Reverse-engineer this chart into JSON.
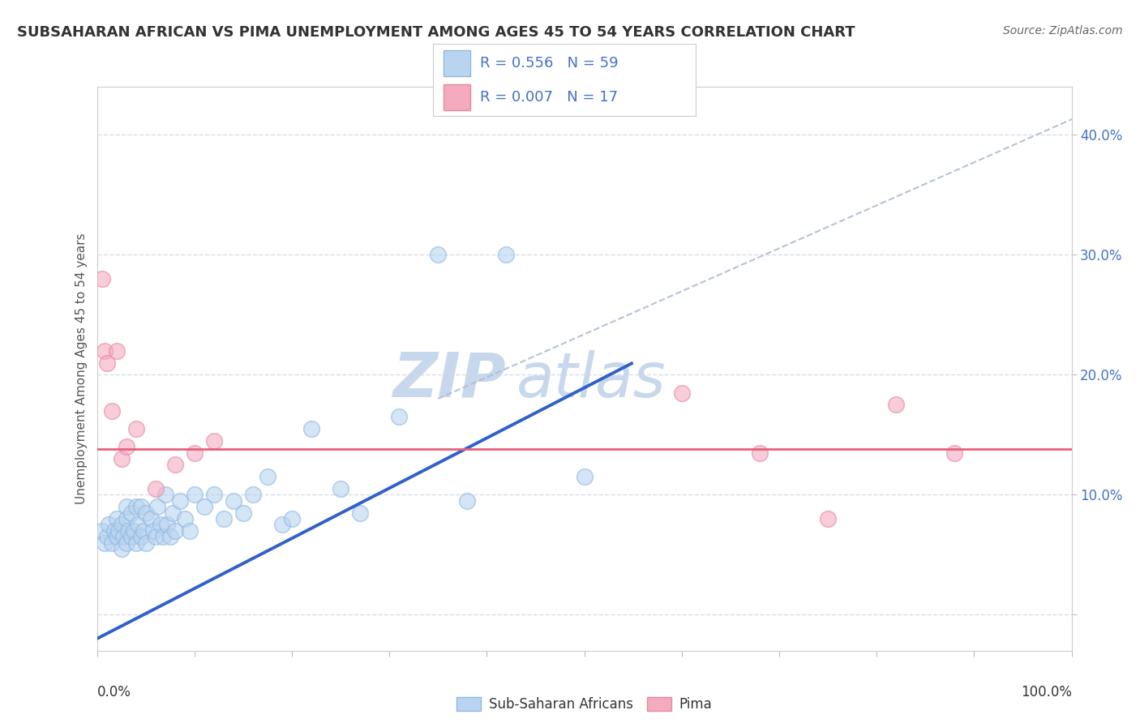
{
  "title": "SUBSAHARAN AFRICAN VS PIMA UNEMPLOYMENT AMONG AGES 45 TO 54 YEARS CORRELATION CHART",
  "source": "Source: ZipAtlas.com",
  "ylabel": "Unemployment Among Ages 45 to 54 years",
  "legend_blue_label": "Sub-Saharan Africans",
  "legend_pink_label": "Pima",
  "R_blue": 0.556,
  "N_blue": 59,
  "R_pink": 0.007,
  "N_pink": 17,
  "blue_fill": "#b8d4f0",
  "blue_edge": "#90b8e0",
  "blue_line_color": "#3060c8",
  "pink_fill": "#f4aabf",
  "pink_edge": "#e888a0",
  "pink_line_color": "#e8607a",
  "ref_line_color": "#b0bcd0",
  "watermark_color": "#c8d8ec",
  "grid_color": "#d8dde8",
  "tick_label_color": "#4472c4",
  "ylabel_color": "#555555",
  "title_color": "#333333",
  "blue_scatter_x": [
    0.005,
    0.008,
    0.01,
    0.012,
    0.015,
    0.018,
    0.02,
    0.02,
    0.022,
    0.025,
    0.025,
    0.027,
    0.03,
    0.03,
    0.03,
    0.032,
    0.035,
    0.035,
    0.038,
    0.04,
    0.04,
    0.042,
    0.045,
    0.045,
    0.048,
    0.05,
    0.05,
    0.055,
    0.058,
    0.06,
    0.062,
    0.065,
    0.068,
    0.07,
    0.072,
    0.075,
    0.078,
    0.08,
    0.085,
    0.09,
    0.095,
    0.1,
    0.11,
    0.12,
    0.13,
    0.14,
    0.15,
    0.16,
    0.175,
    0.19,
    0.2,
    0.22,
    0.25,
    0.27,
    0.31,
    0.35,
    0.38,
    0.42,
    0.5
  ],
  "blue_scatter_y": [
    0.07,
    0.06,
    0.065,
    0.075,
    0.06,
    0.07,
    0.065,
    0.08,
    0.07,
    0.055,
    0.075,
    0.065,
    0.06,
    0.08,
    0.09,
    0.07,
    0.065,
    0.085,
    0.07,
    0.06,
    0.09,
    0.075,
    0.065,
    0.09,
    0.07,
    0.06,
    0.085,
    0.08,
    0.07,
    0.065,
    0.09,
    0.075,
    0.065,
    0.1,
    0.075,
    0.065,
    0.085,
    0.07,
    0.095,
    0.08,
    0.07,
    0.1,
    0.09,
    0.1,
    0.08,
    0.095,
    0.085,
    0.1,
    0.115,
    0.075,
    0.08,
    0.155,
    0.105,
    0.085,
    0.165,
    0.3,
    0.095,
    0.3,
    0.115
  ],
  "pink_scatter_x": [
    0.005,
    0.008,
    0.01,
    0.015,
    0.02,
    0.025,
    0.03,
    0.04,
    0.06,
    0.08,
    0.1,
    0.12,
    0.6,
    0.68,
    0.75,
    0.82,
    0.88
  ],
  "pink_scatter_y": [
    0.28,
    0.22,
    0.21,
    0.17,
    0.22,
    0.13,
    0.14,
    0.155,
    0.105,
    0.125,
    0.135,
    0.145,
    0.185,
    0.135,
    0.08,
    0.175,
    0.135
  ],
  "blue_line_x0": 0.0,
  "blue_line_y0": -0.02,
  "blue_line_x1": 0.55,
  "blue_line_y1": 0.21,
  "pink_line_y": 0.138,
  "ref_line_x0": 0.35,
  "ref_line_y0": 0.18,
  "ref_line_x1": 1.02,
  "ref_line_y1": 0.42,
  "xlim": [
    0.0,
    1.0
  ],
  "ylim": [
    -0.03,
    0.44
  ],
  "yticks": [
    0.0,
    0.1,
    0.2,
    0.3,
    0.4
  ],
  "ytick_labels": [
    "",
    "10.0%",
    "20.0%",
    "30.0%",
    "40.0%"
  ]
}
